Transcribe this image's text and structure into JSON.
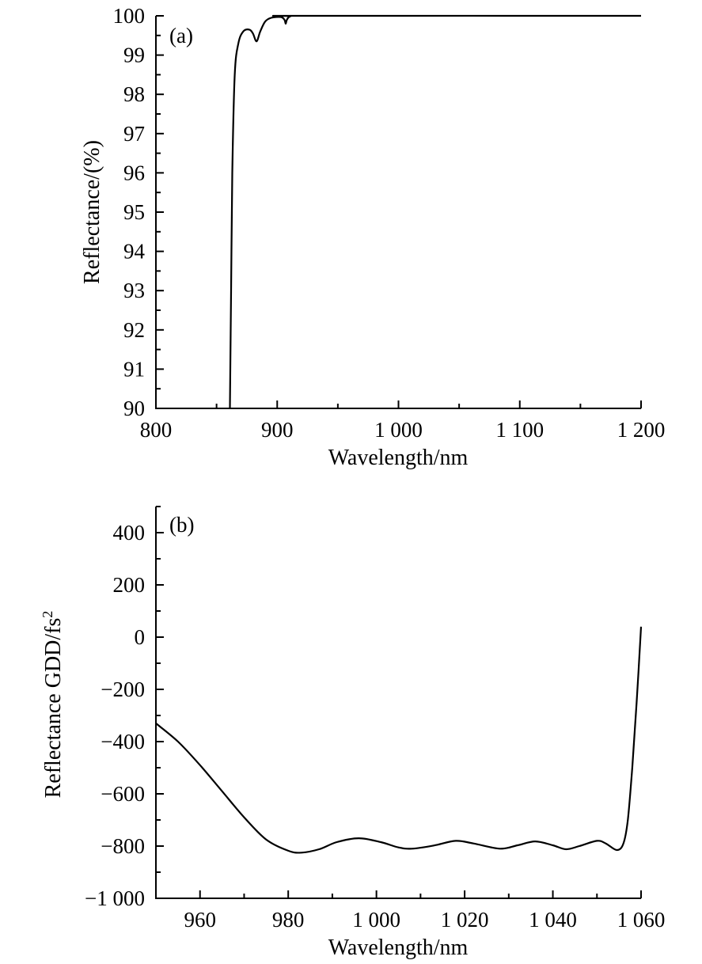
{
  "chart_data": [
    {
      "type": "line",
      "panel_label": "(a)",
      "xlabel": "Wavelength/nm",
      "ylabel": "Reflectance/(%)",
      "xlim": [
        800,
        1200
      ],
      "ylim": [
        90,
        100
      ],
      "xticks": [
        800,
        900,
        1000,
        1100,
        1200
      ],
      "xtick_labels": [
        "800",
        "900",
        "1 000",
        "1 100",
        "1 200"
      ],
      "x_minor_step": 50,
      "yticks": [
        90,
        91,
        92,
        93,
        94,
        95,
        96,
        97,
        98,
        99,
        100
      ],
      "ytick_labels": [
        "90",
        "91",
        "92",
        "93",
        "94",
        "95",
        "96",
        "97",
        "98",
        "99",
        "100"
      ],
      "y_minor_step": 0.5,
      "grid": false,
      "series": [
        {
          "name": "Reflectance",
          "color": "#000000",
          "x": [
            861,
            862,
            863,
            865,
            868,
            872,
            877,
            880,
            883,
            886,
            890,
            895,
            903,
            906,
            907,
            908,
            911,
            920,
            1200
          ],
          "y": [
            90,
            93,
            96,
            98.5,
            99.3,
            99.6,
            99.65,
            99.55,
            99.35,
            99.6,
            99.85,
            99.95,
            99.97,
            99.9,
            99.8,
            99.9,
            99.99,
            100,
            100
          ]
        }
      ]
    },
    {
      "type": "line",
      "panel_label": "(b)",
      "xlabel": "Wavelength/nm",
      "ylabel": "Reflectance GDD/fs",
      "ylabel_superscript": "2",
      "xlim": [
        950,
        1060
      ],
      "ylim": [
        -1000,
        500
      ],
      "xticks": [
        960,
        980,
        1000,
        1020,
        1040,
        1060
      ],
      "xtick_labels": [
        "960",
        "980",
        "1 000",
        "1 020",
        "1 040",
        "1 060"
      ],
      "x_minor_step": 10,
      "yticks": [
        -1000,
        -800,
        -600,
        -400,
        -200,
        0,
        200,
        400
      ],
      "ytick_labels": [
        "−1 000",
        "−800",
        "−600",
        "−400",
        "−200",
        "0",
        "200",
        "400"
      ],
      "y_minor_step": 100,
      "grid": false,
      "series": [
        {
          "name": "GDD",
          "color": "#000000",
          "x": [
            950,
            955,
            960,
            965,
            970,
            975,
            980,
            983,
            987,
            991,
            996,
            1001,
            1005,
            1008,
            1013,
            1018,
            1022,
            1028,
            1032,
            1036,
            1040,
            1043,
            1046,
            1050,
            1052,
            1054.5,
            1056,
            1057,
            1058,
            1059,
            1060
          ],
          "y": [
            -330,
            -400,
            -490,
            -590,
            -690,
            -775,
            -818,
            -825,
            -812,
            -785,
            -770,
            -785,
            -805,
            -810,
            -798,
            -780,
            -790,
            -810,
            -797,
            -782,
            -797,
            -812,
            -800,
            -780,
            -790,
            -815,
            -790,
            -700,
            -500,
            -250,
            40
          ]
        }
      ]
    }
  ]
}
